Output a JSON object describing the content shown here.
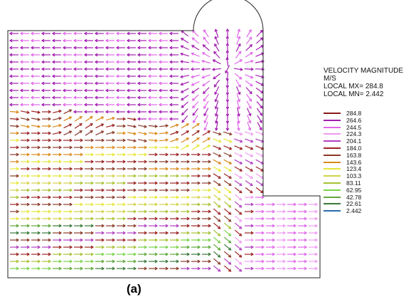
{
  "legend": {
    "title": "VELOCITY MAGNITUDE",
    "unit": "M/S",
    "max_label": "LOCAL MX=",
    "max_value": "284.8",
    "min_label": "LOCAL MN=",
    "min_value": "2.442",
    "levels": [
      {
        "value": "284.8",
        "color": "#8b1a1a"
      },
      {
        "value": "264.6",
        "color": "#a21fb0"
      },
      {
        "value": "244.5",
        "color": "#e06ae8"
      },
      {
        "value": "224.3",
        "color": "#ee9cf2"
      },
      {
        "value": "204.1",
        "color": "#b040c0"
      },
      {
        "value": "184.0",
        "color": "#9c2424"
      },
      {
        "value": "163.8",
        "color": "#8a3a2a"
      },
      {
        "value": "143.6",
        "color": "#d98a1c"
      },
      {
        "value": "123.4",
        "color": "#e6e63a"
      },
      {
        "value": "103.3",
        "color": "#d2d24a"
      },
      {
        "value": "83.11",
        "color": "#a6c232"
      },
      {
        "value": "62.95",
        "color": "#7cd24a"
      },
      {
        "value": "42.78",
        "color": "#5ea83a"
      },
      {
        "value": "22.61",
        "color": "#3a7a3a"
      },
      {
        "value": "2.442",
        "color": "#2a6ea8"
      }
    ]
  },
  "caption": "(a)"
}
